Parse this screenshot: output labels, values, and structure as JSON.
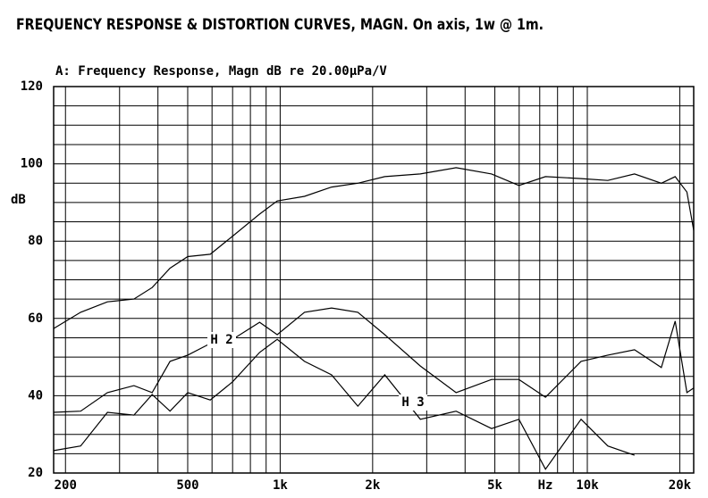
{
  "chart_data": {
    "type": "line",
    "title": "FREQUENCY RESPONSE & DISTORTION CURVES, MAGN. On axis, 1w @ 1m.",
    "subtitle": "A: Frequency Response, Magn dB re 20.00µPa/V",
    "y_label": "dB",
    "x_label": "Hz",
    "x_log": true,
    "grid": true,
    "x": [
      183,
      224,
      274,
      334,
      383,
      438,
      500,
      592,
      700,
      857,
      978,
      1200,
      1470,
      1790,
      2190,
      2860,
      3740,
      4880,
      5990,
      7310,
      9540,
      11660,
      14250,
      17420,
      19330,
      21100,
      22200
    ],
    "series": [
      {
        "color": "#000000",
        "values": [
          57.4,
          61.6,
          64.3,
          65,
          68,
          73,
          76,
          76.6,
          81.3,
          87,
          90.4,
          91.6,
          94,
          95,
          96.7,
          97.4,
          99,
          97.4,
          94.4,
          96.7,
          96.2,
          95.7,
          97.4,
          95,
          96.7,
          92.7,
          82.8
        ]
      },
      {
        "name": "H 2",
        "color": "#000000",
        "values": [
          35.7,
          36,
          40.8,
          42.6,
          40.8,
          48.9,
          50.5,
          53.5,
          54.6,
          59,
          55.8,
          61.6,
          62.7,
          61.6,
          55.8,
          47.7,
          40.8,
          44.2,
          44.2,
          39.6,
          48.9,
          50.5,
          51.9,
          47.3,
          59.3,
          40.8,
          42
        ]
      },
      {
        "name": "H 3",
        "color": "#000000",
        "values": [
          25.8,
          27,
          35.7,
          35,
          40.3,
          36,
          40.8,
          38.9,
          43.6,
          51.2,
          54.6,
          48.9,
          45.4,
          37.3,
          45.4,
          33.9,
          36,
          31.5,
          33.9,
          21,
          33.9,
          27,
          24.6,
          null,
          null,
          null,
          null
        ]
      }
    ],
    "xlim": [
      183,
      22200
    ],
    "ylim": [
      20,
      120
    ],
    "xticks": [
      200,
      500,
      {
        "value": 1000,
        "label": "1k"
      },
      {
        "value": 2000,
        "label": "2k"
      },
      {
        "value": 5000,
        "label": "5k"
      },
      {
        "value": 10000,
        "label": "10k"
      },
      {
        "value": 20000,
        "label": "20k"
      }
    ],
    "x_minor_ticks": [
      300,
      400,
      600,
      700,
      800,
      900,
      3000,
      4000,
      6000,
      7000,
      8000,
      9000
    ],
    "yticks": [
      20,
      40,
      60,
      80,
      100,
      120
    ],
    "y_minor_ticks": [
      25,
      30,
      35,
      45,
      50,
      55,
      65,
      70,
      75,
      85,
      90,
      95,
      105,
      110,
      115
    ]
  }
}
